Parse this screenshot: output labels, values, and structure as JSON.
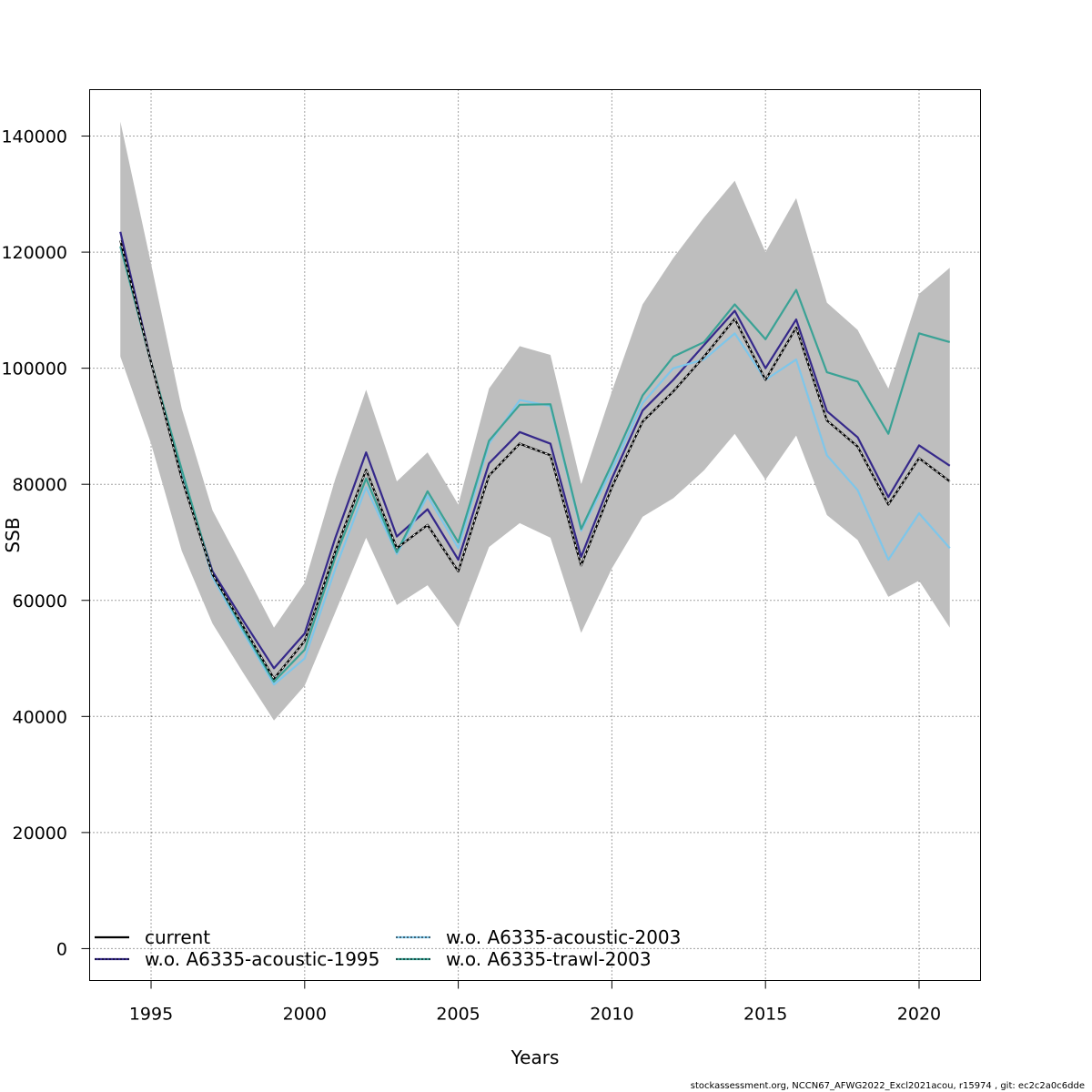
{
  "chart_data": {
    "type": "line",
    "title": "",
    "xlabel": "Years",
    "ylabel": "SSB",
    "xlim": [
      1993,
      2022
    ],
    "ylim": [
      -5500,
      148000
    ],
    "grid": true,
    "legend_position": "bottom-left",
    "x_ticks": [
      1995,
      2000,
      2005,
      2010,
      2015,
      2020
    ],
    "y_ticks": [
      0,
      20000,
      40000,
      60000,
      80000,
      100000,
      120000,
      140000
    ],
    "x": [
      1994,
      1995,
      1996,
      1997,
      1998,
      1999,
      2000,
      2001,
      2002,
      2003,
      2004,
      2005,
      2006,
      2007,
      2008,
      2009,
      2010,
      2011,
      2012,
      2013,
      2014,
      2015,
      2016,
      2017,
      2018,
      2019,
      2020,
      2021
    ],
    "confidence_band": {
      "upper": [
        142500,
        118000,
        93000,
        75500,
        65500,
        55300,
        63000,
        81000,
        96300,
        80500,
        85500,
        76500,
        96500,
        103800,
        102300,
        80000,
        96000,
        111000,
        119000,
        126000,
        132300,
        120000,
        129300,
        111300,
        106600,
        96500,
        112800,
        117300
      ],
      "lower": [
        102000,
        87000,
        68500,
        56000,
        47500,
        39300,
        45300,
        58000,
        70800,
        59200,
        62600,
        55300,
        69200,
        73300,
        70800,
        54400,
        65500,
        74400,
        77600,
        82400,
        88700,
        80800,
        88400,
        74700,
        70400,
        60600,
        63400,
        55300
      ]
    },
    "series": [
      {
        "name": "current",
        "color": "#000000",
        "values": [
          122000,
          101000,
          81000,
          64500,
          55500,
          46500,
          53000,
          68500,
          82500,
          69000,
          73000,
          65000,
          81500,
          87000,
          85000,
          66000,
          79500,
          90800,
          96000,
          102000,
          108500,
          98000,
          107000,
          91000,
          86500,
          76500,
          84500,
          80500
        ]
      },
      {
        "name": "w.o. A6335-acoustic-1995",
        "color": "#35288a",
        "values": [
          123500,
          101000,
          81500,
          65000,
          56500,
          48300,
          54300,
          70800,
          85500,
          71000,
          75700,
          67000,
          83600,
          89000,
          87000,
          67500,
          81000,
          92700,
          98000,
          104000,
          109900,
          100000,
          108400,
          92600,
          88100,
          77800,
          86700,
          83200
        ]
      },
      {
        "name": "w.o. A6335-acoustic-2003",
        "color": "#7ec6ea",
        "values": [
          121000,
          101000,
          82000,
          64000,
          54500,
          45500,
          50000,
          65500,
          79500,
          68000,
          78000,
          69000,
          87000,
          94500,
          93500,
          72000,
          82500,
          94000,
          100000,
          101500,
          106000,
          98000,
          101500,
          85000,
          79000,
          67000,
          75000,
          69000
        ]
      },
      {
        "name": "w.o. A6335-trawl-2003",
        "color": "#3aa295",
        "values": [
          121000,
          101000,
          82500,
          64500,
          55000,
          46000,
          51500,
          67500,
          81000,
          68300,
          78800,
          70000,
          87500,
          93700,
          93800,
          72300,
          83500,
          95300,
          102000,
          104500,
          111000,
          105000,
          113500,
          99300,
          97700,
          88700,
          106000,
          104500
        ]
      }
    ]
  },
  "footer": {
    "note": "stockassessment.org, NCCN67_AFWG2022_Excl2021acou, r15974 , git: ec2c2a0c6dde"
  }
}
